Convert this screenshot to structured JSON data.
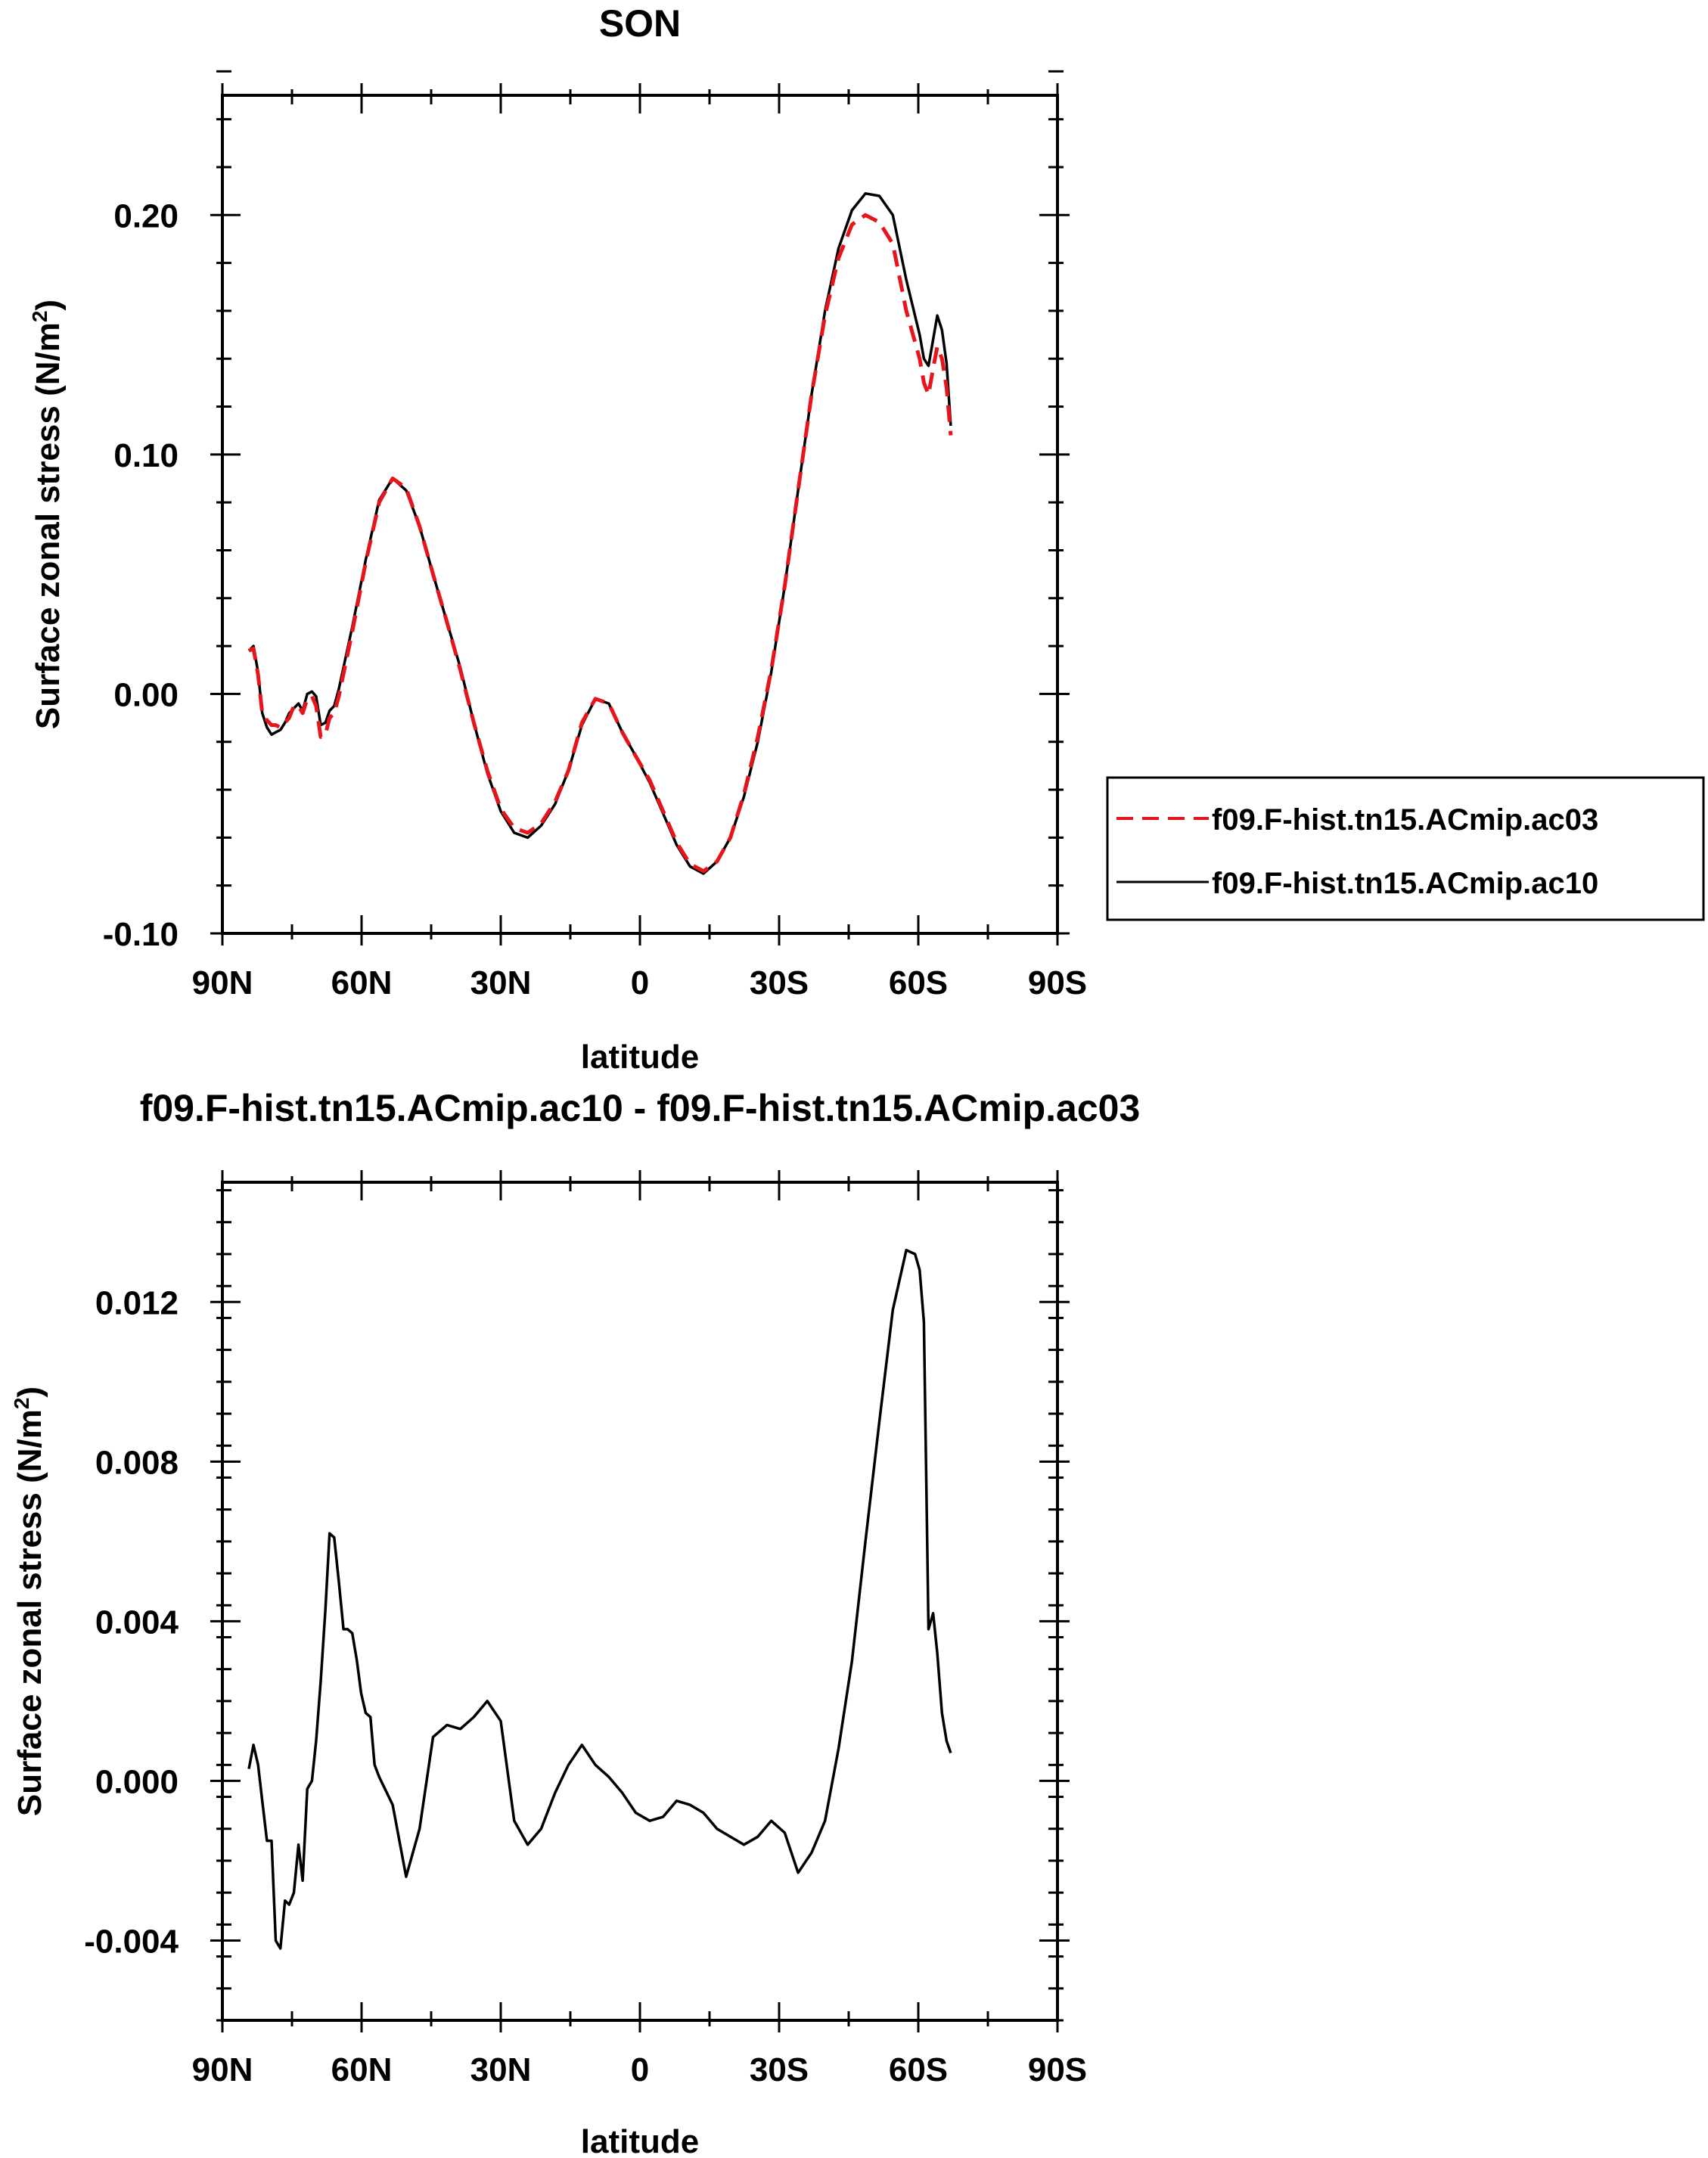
{
  "chart_data": [
    {
      "type": "line",
      "title": "SON",
      "xlabel": "latitude",
      "ylabel": "Surface zonal stress (N/m",
      "ylabel_sup": "2",
      "ylabel_tail": ")",
      "xlim": [
        90,
        -90
      ],
      "ylim": [
        -0.1,
        0.25
      ],
      "xticks": [
        90,
        60,
        30,
        0,
        -30,
        -60,
        -90
      ],
      "xtick_labels": [
        "90N",
        "60N",
        "30N",
        "0",
        "30S",
        "60S",
        "90S"
      ],
      "yticks": [
        -0.1,
        0.0,
        0.1,
        0.2
      ],
      "ytick_labels": [
        "-0.10",
        "0.00",
        "0.10",
        "0.20"
      ],
      "grid": false,
      "legend_position": "right",
      "series": [
        {
          "name": "f09.F-hist.tn15.ACmip.ac03",
          "color": "#e8141b",
          "dash": "dashed",
          "x": [
            84.3,
            83.3,
            82.3,
            81.4,
            80.4,
            79.4,
            78.5,
            77.5,
            76.5,
            75.6,
            74.6,
            73.6,
            72.7,
            71.7,
            70.7,
            69.8,
            68.8,
            67.8,
            66.9,
            65.9,
            64.9,
            62.0,
            59.1,
            56.2,
            53.3,
            50.4,
            47.5,
            44.6,
            41.6,
            38.7,
            35.8,
            32.9,
            30.0,
            27.1,
            24.2,
            21.3,
            18.3,
            15.4,
            12.5,
            9.6,
            6.7,
            3.8,
            0.9,
            -2.1,
            -5.0,
            -7.9,
            -10.8,
            -13.7,
            -16.6,
            -19.5,
            -22.4,
            -25.4,
            -28.3,
            -31.2,
            -34.1,
            -37.0,
            -39.9,
            -42.8,
            -45.7,
            -48.6,
            -51.6,
            -54.5,
            -57.4,
            -60.3,
            -61.2,
            -62.2,
            -63.2,
            -64.1,
            -65.1,
            -66.1,
            -67.0
          ],
          "y": [
            0.018,
            0.019,
            0.008,
            -0.008,
            -0.011,
            -0.013,
            -0.013,
            -0.014,
            -0.012,
            -0.01,
            -0.005,
            -0.005,
            -0.008,
            -0.002,
            -0.001,
            -0.005,
            -0.018,
            -0.017,
            -0.01,
            -0.008,
            -0.001,
            0.026,
            0.055,
            0.08,
            0.09,
            0.086,
            0.07,
            0.05,
            0.03,
            0.01,
            -0.012,
            -0.032,
            -0.048,
            -0.056,
            -0.058,
            -0.054,
            -0.045,
            -0.032,
            -0.012,
            -0.002,
            -0.004,
            -0.016,
            -0.026,
            -0.036,
            -0.049,
            -0.062,
            -0.071,
            -0.074,
            -0.07,
            -0.06,
            -0.042,
            -0.018,
            0.01,
            0.045,
            0.085,
            0.125,
            0.158,
            0.182,
            0.196,
            0.2,
            0.197,
            0.188,
            0.16,
            0.14,
            0.13,
            0.125,
            0.136,
            0.145,
            0.14,
            0.128,
            0.108
          ]
        },
        {
          "name": "f09.F-hist.tn15.ACmip.ac10",
          "color": "#000000",
          "dash": "solid",
          "x": [
            84.3,
            83.3,
            82.3,
            81.4,
            80.4,
            79.4,
            78.5,
            77.5,
            76.5,
            75.6,
            74.6,
            73.6,
            72.7,
            71.7,
            70.7,
            69.8,
            68.8,
            67.8,
            66.9,
            65.9,
            64.9,
            62.0,
            59.1,
            56.2,
            53.3,
            50.4,
            47.5,
            44.6,
            41.6,
            38.7,
            35.8,
            32.9,
            30.0,
            27.1,
            24.2,
            21.3,
            18.3,
            15.4,
            12.5,
            9.6,
            6.7,
            3.8,
            0.9,
            -2.1,
            -5.0,
            -7.9,
            -10.8,
            -13.7,
            -16.6,
            -19.5,
            -22.4,
            -25.4,
            -28.3,
            -31.2,
            -34.1,
            -37.0,
            -39.9,
            -42.8,
            -45.7,
            -48.6,
            -51.6,
            -54.5,
            -57.4,
            -60.3,
            -61.2,
            -62.2,
            -63.2,
            -64.1,
            -65.1,
            -66.1,
            -67.0
          ],
          "y": [
            0.018,
            0.02,
            0.009,
            -0.008,
            -0.014,
            -0.017,
            -0.016,
            -0.015,
            -0.012,
            -0.008,
            -0.006,
            -0.004,
            -0.007,
            0.0,
            0.001,
            -0.001,
            -0.013,
            -0.012,
            -0.007,
            -0.005,
            0.002,
            0.028,
            0.056,
            0.081,
            0.09,
            0.085,
            0.07,
            0.05,
            0.03,
            0.011,
            -0.012,
            -0.033,
            -0.049,
            -0.058,
            -0.06,
            -0.055,
            -0.046,
            -0.032,
            -0.013,
            -0.002,
            -0.004,
            -0.016,
            -0.026,
            -0.037,
            -0.05,
            -0.063,
            -0.072,
            -0.075,
            -0.07,
            -0.06,
            -0.043,
            -0.02,
            0.009,
            0.045,
            0.085,
            0.125,
            0.16,
            0.186,
            0.202,
            0.209,
            0.208,
            0.2,
            0.173,
            0.15,
            0.14,
            0.137,
            0.148,
            0.158,
            0.152,
            0.138,
            0.112
          ]
        }
      ]
    },
    {
      "type": "line",
      "title": "f09.F-hist.tn15.ACmip.ac10 - f09.F-hist.tn15.ACmip.ac03",
      "xlabel": "latitude",
      "ylabel": "Surface zonal stress (N/m",
      "ylabel_sup": "2",
      "ylabel_tail": ")",
      "xlim": [
        90,
        -90
      ],
      "ylim": [
        -0.006,
        0.015
      ],
      "xticks": [
        90,
        60,
        30,
        0,
        -30,
        -60,
        -90
      ],
      "xtick_labels": [
        "90N",
        "60N",
        "30N",
        "0",
        "30S",
        "60S",
        "90S"
      ],
      "yticks": [
        -0.004,
        0.0,
        0.004,
        0.008,
        0.012
      ],
      "ytick_labels": [
        "-0.004",
        "0.000",
        "0.004",
        "0.008",
        "0.012"
      ],
      "grid": false,
      "series": [
        {
          "color": "#000000",
          "dash": "solid",
          "x": [
            84.3,
            83.3,
            82.3,
            81.4,
            80.4,
            79.4,
            78.5,
            77.5,
            76.5,
            75.6,
            74.6,
            73.6,
            72.7,
            71.7,
            70.7,
            69.8,
            68.8,
            67.8,
            66.9,
            65.9,
            64.9,
            63.9,
            63.0,
            62.0,
            61.0,
            60.1,
            59.1,
            58.1,
            57.2,
            56.2,
            53.3,
            50.4,
            47.5,
            44.6,
            41.6,
            38.7,
            35.8,
            32.9,
            30.0,
            27.1,
            24.2,
            21.3,
            18.3,
            15.4,
            12.5,
            9.6,
            6.7,
            3.8,
            0.9,
            -2.1,
            -5.0,
            -7.9,
            -10.8,
            -13.7,
            -16.6,
            -19.5,
            -22.4,
            -25.4,
            -28.3,
            -31.2,
            -34.1,
            -37.0,
            -39.9,
            -42.8,
            -45.7,
            -48.6,
            -51.6,
            -54.5,
            -57.4,
            -59.3,
            -60.3,
            -61.2,
            -62.2,
            -63.2,
            -64.1,
            -65.1,
            -66.1,
            -67.0
          ],
          "y": [
            0.0003,
            0.0009,
            0.0004,
            -0.0005,
            -0.0015,
            -0.0015,
            -0.004,
            -0.0042,
            -0.003,
            -0.0031,
            -0.0028,
            -0.0016,
            -0.0025,
            -0.0002,
            0.0,
            0.001,
            0.0025,
            0.0043,
            0.0062,
            0.0061,
            0.005,
            0.0038,
            0.0038,
            0.0037,
            0.003,
            0.0022,
            0.0017,
            0.0016,
            0.0004,
            0.0001,
            -0.0006,
            -0.0024,
            -0.0012,
            0.0011,
            0.0014,
            0.0013,
            0.0016,
            0.002,
            0.0015,
            -0.001,
            -0.0016,
            -0.0012,
            -0.0003,
            0.0004,
            0.0009,
            0.0004,
            0.0001,
            -0.0003,
            -0.0008,
            -0.001,
            -0.0009,
            -0.0005,
            -0.0006,
            -0.0008,
            -0.0012,
            -0.0014,
            -0.0016,
            -0.0014,
            -0.001,
            -0.0013,
            -0.0023,
            -0.0018,
            -0.001,
            0.0008,
            0.003,
            0.006,
            0.009,
            0.0118,
            0.0133,
            0.0132,
            0.0128,
            0.0115,
            0.0038,
            0.0042,
            0.0032,
            0.0017,
            0.001,
            0.0007
          ]
        }
      ]
    }
  ]
}
